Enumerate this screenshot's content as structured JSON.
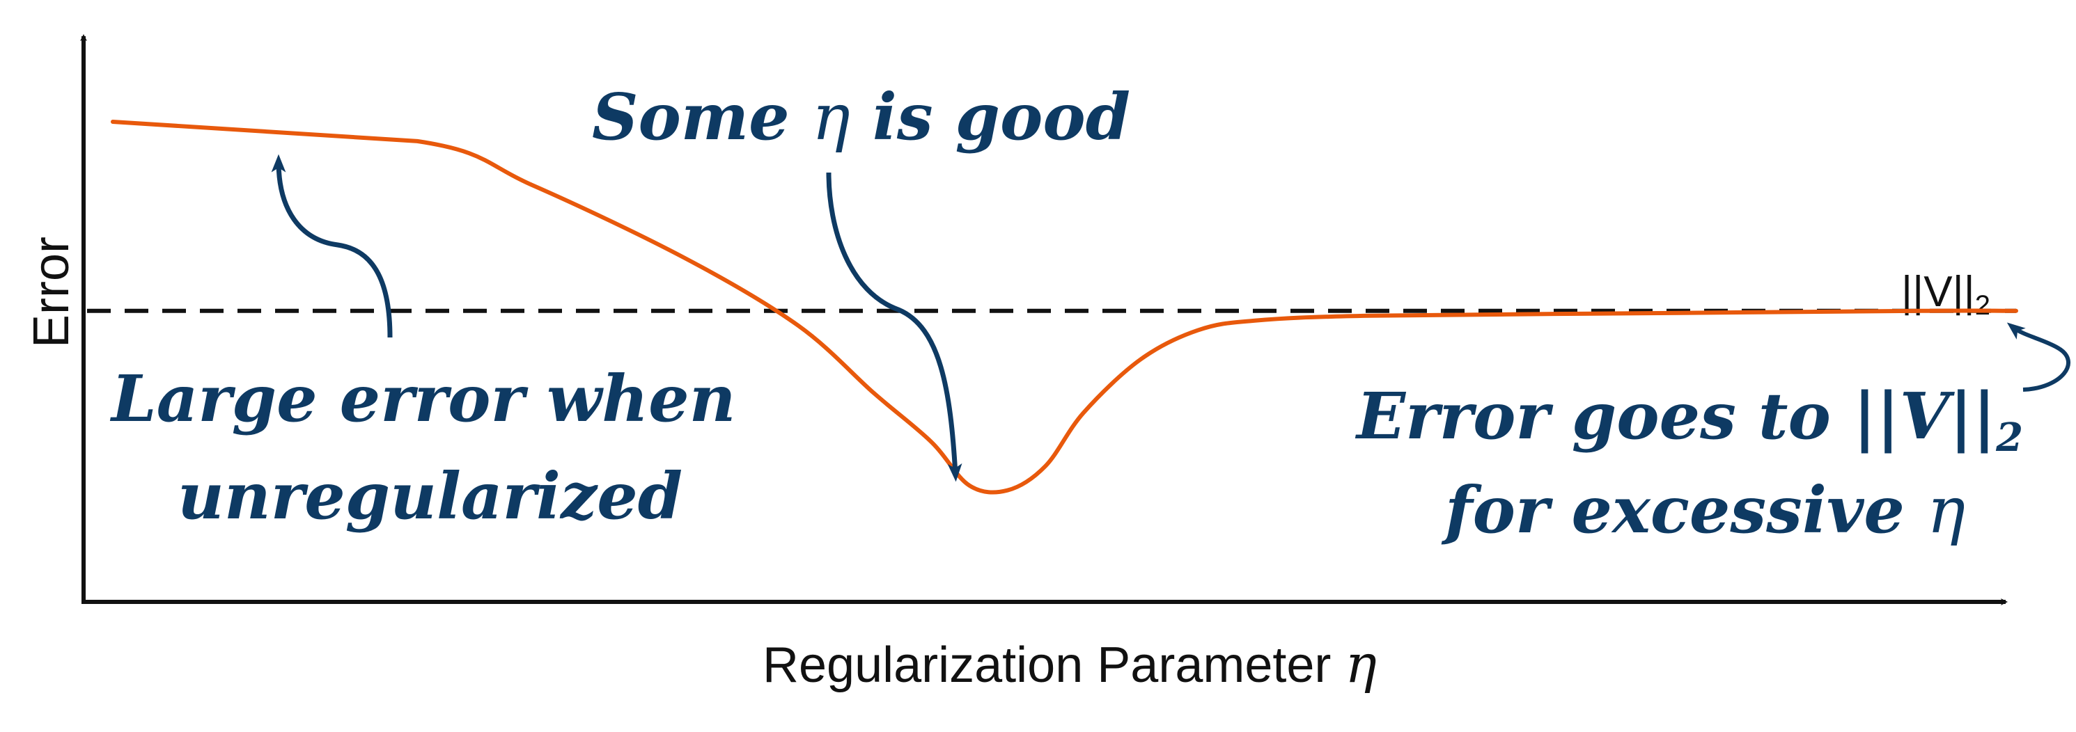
{
  "chart_data": {
    "type": "line",
    "title": "",
    "xlabel": "Regularization Parameter",
    "xlabel_symbol": "η",
    "ylabel": "Error",
    "grid": false,
    "legend": "none",
    "x_scale": "qualitative",
    "y_scale": "qualitative",
    "series": [
      {
        "color": "#e8590c",
        "x": [
          0.0,
          0.16,
          0.22,
          0.3,
          0.36,
          0.4,
          0.43,
          0.45,
          0.47,
          0.49,
          0.51,
          0.54,
          0.57,
          0.6,
          0.66,
          0.8,
          0.95,
          1.0
        ],
        "values": [
          0.99,
          0.95,
          0.86,
          0.71,
          0.57,
          0.43,
          0.33,
          0.24,
          0.23,
          0.28,
          0.39,
          0.5,
          0.56,
          0.58,
          0.59,
          0.595,
          0.6,
          0.6
        ]
      }
    ],
    "reference_line": {
      "color": "#111111",
      "style": "dashed",
      "value": 0.6,
      "label": "||V||",
      "label_subscript": "2"
    },
    "annotations": {
      "some_eta": {
        "text": "Some",
        "symbol": "η",
        "text_after": "is good"
      },
      "large_error": {
        "line1": "Large error when",
        "line2": "unregularized"
      },
      "error_goes": {
        "line1": "Error goes to",
        "norm": "||V||",
        "norm_subscript": "2",
        "line2": "for excessive",
        "symbol": "η"
      }
    },
    "colors": {
      "annotation": "#0e3a63",
      "curve": "#e8590c",
      "axis": "#111111"
    }
  }
}
